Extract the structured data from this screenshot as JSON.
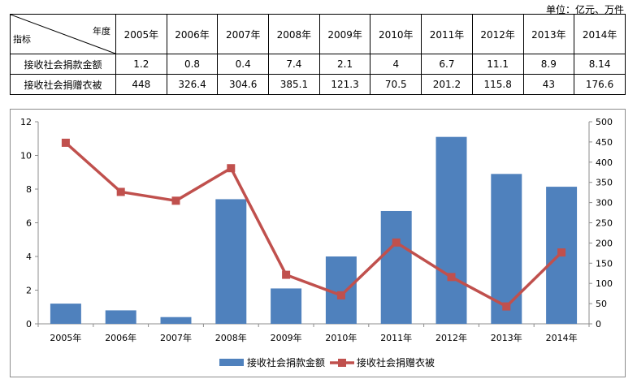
{
  "unit_note": "单位：亿元、万件",
  "table": {
    "corner_top": "年度",
    "corner_bottom": "指标",
    "years": [
      "2005年",
      "2006年",
      "2007年",
      "2008年",
      "2009年",
      "2010年",
      "2011年",
      "2012年",
      "2013年",
      "2014年"
    ],
    "rows": [
      {
        "label": "接收社会捐款金额",
        "values": [
          "1.2",
          "0.8",
          "0.4",
          "7.4",
          "2.1",
          "4",
          "6.7",
          "11.1",
          "8.9",
          "8.14"
        ]
      },
      {
        "label": "接收社会捐赠衣被",
        "values": [
          "448",
          "326.4",
          "304.6",
          "385.1",
          "121.3",
          "70.5",
          "201.2",
          "115.8",
          "43",
          "176.6"
        ]
      }
    ]
  },
  "chart_data": {
    "type": "bar",
    "categories": [
      "2005年",
      "2006年",
      "2007年",
      "2008年",
      "2009年",
      "2010年",
      "2011年",
      "2012年",
      "2013年",
      "2014年"
    ],
    "series": [
      {
        "name": "接收社会捐款金额",
        "type": "bar",
        "axis": "left",
        "color": "#4f81bd",
        "values": [
          1.2,
          0.8,
          0.4,
          7.4,
          2.1,
          4,
          6.7,
          11.1,
          8.9,
          8.14
        ]
      },
      {
        "name": "接收社会捐赠衣被",
        "type": "line",
        "axis": "right",
        "color": "#c0504d",
        "values": [
          448,
          326.4,
          304.6,
          385.1,
          121.3,
          70.5,
          201.2,
          115.8,
          43,
          176.6
        ]
      }
    ],
    "y_left": {
      "ylim": [
        0,
        12
      ],
      "ticks": [
        0,
        2,
        4,
        6,
        8,
        10,
        12
      ]
    },
    "y_right": {
      "ylim": [
        0,
        500
      ],
      "ticks": [
        0,
        50,
        100,
        150,
        200,
        250,
        300,
        350,
        400,
        450,
        500
      ]
    },
    "grid": false,
    "legend_position": "bottom"
  }
}
